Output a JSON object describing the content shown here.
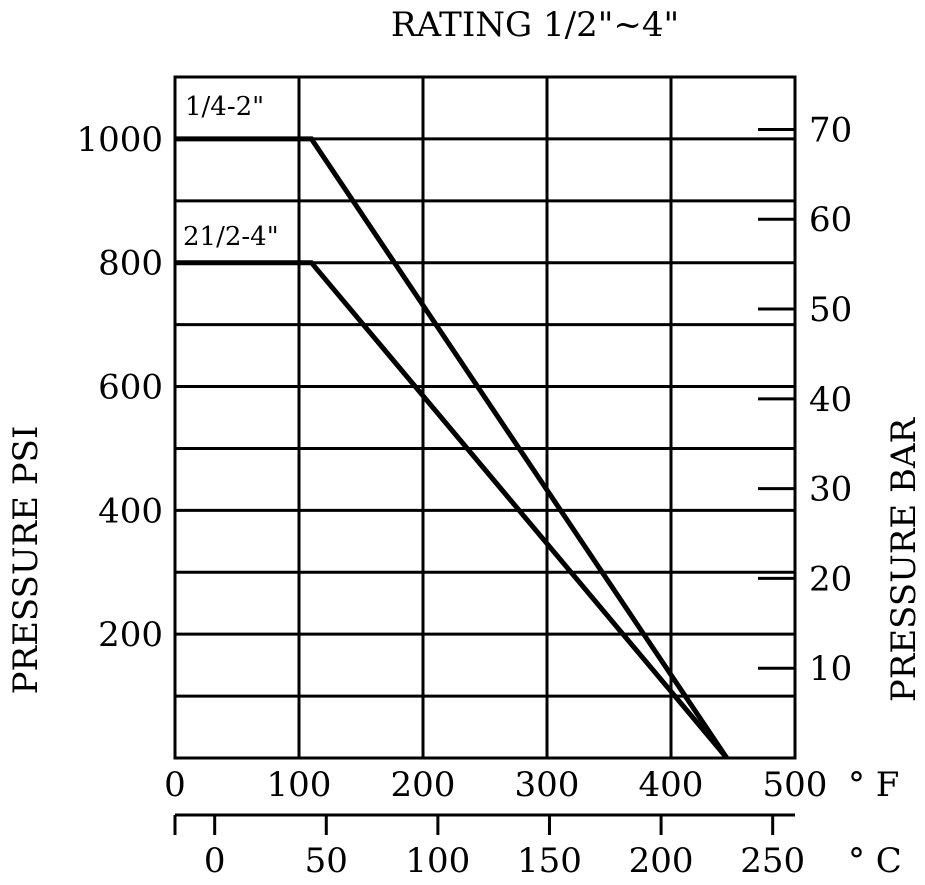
{
  "chart_data": {
    "type": "line",
    "title": "RATING 1/2\"~4\"",
    "ylabel": "PRESSURE PSI",
    "y2label": "PRESSURE BAR",
    "x_unit_f": "° F",
    "x_unit_c": "° C",
    "xlim": [
      0,
      500
    ],
    "ylim": [
      0,
      1100
    ],
    "x_ticks_f": [
      "0",
      "100",
      "200",
      "300",
      "400",
      "500"
    ],
    "x_ticks_c": [
      "0",
      "50",
      "100",
      "150",
      "200",
      "250"
    ],
    "y_ticks_psi": [
      "200",
      "400",
      "600",
      "800",
      "1000"
    ],
    "y_ticks_bar": [
      "10",
      "20",
      "30",
      "40",
      "50",
      "60",
      "70"
    ],
    "grid": true,
    "series": [
      {
        "name": "1/4-2\"",
        "x": [
          0,
          110,
          445
        ],
        "y": [
          1000,
          1000,
          0
        ]
      },
      {
        "name": "21/2-4\"",
        "x": [
          0,
          110,
          445
        ],
        "y": [
          800,
          800,
          0
        ]
      }
    ]
  }
}
